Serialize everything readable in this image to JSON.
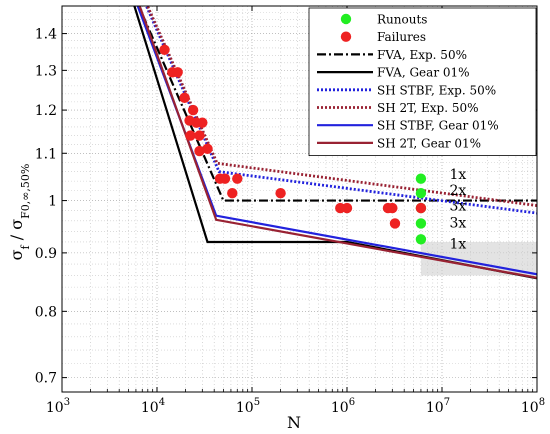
{
  "chart_data": {
    "type": "line",
    "xscale": "log",
    "yscale": "log",
    "xlim": [
      1000,
      100000000
    ],
    "ylim": [
      0.68,
      1.48
    ],
    "grid": true,
    "xlabel": "N",
    "ylabel_main": "σ",
    "ylabel_sub1": "f",
    "ylabel_mid": " / σ",
    "ylabel_sub2": "F0,∞,50%",
    "x_ticks": [
      {
        "value": 1000,
        "base": "10",
        "exp": "3"
      },
      {
        "value": 10000,
        "base": "10",
        "exp": "4"
      },
      {
        "value": 100000,
        "base": "10",
        "exp": "5"
      },
      {
        "value": 1000000,
        "base": "10",
        "exp": "6"
      },
      {
        "value": 10000000,
        "base": "10",
        "exp": "7"
      },
      {
        "value": 100000000,
        "base": "10",
        "exp": "8"
      }
    ],
    "y_ticks": [
      {
        "value": 0.7,
        "label": "0.7"
      },
      {
        "value": 0.8,
        "label": "0.8"
      },
      {
        "value": 0.9,
        "label": "0.9"
      },
      {
        "value": 1.0,
        "label": "1"
      },
      {
        "value": 1.1,
        "label": "1.1"
      },
      {
        "value": 1.2,
        "label": "1.2"
      },
      {
        "value": 1.3,
        "label": "1.3"
      },
      {
        "value": 1.4,
        "label": "1.4"
      }
    ],
    "legend_position": "top-right",
    "series": [
      {
        "name": "Runouts",
        "kind": "scatter",
        "color": "#22ee22",
        "x": [
          6000000,
          6000000,
          6000000,
          6000000,
          6000000
        ],
        "y": [
          1.045,
          1.015,
          0.985,
          0.955,
          0.925
        ]
      },
      {
        "name": "Failures",
        "kind": "scatter",
        "color": "#ee2222",
        "x": [
          12000,
          14500,
          16500,
          19500,
          22000,
          24000,
          22500,
          26000,
          28000,
          30000,
          34000,
          28000,
          46000,
          52000,
          62000,
          70000,
          200000,
          850000,
          1000000,
          2700000,
          3000000,
          3200000,
          6000000
        ],
        "y": [
          1.355,
          1.295,
          1.295,
          1.23,
          1.175,
          1.2,
          1.14,
          1.17,
          1.14,
          1.17,
          1.11,
          1.105,
          1.045,
          1.045,
          1.015,
          1.045,
          1.015,
          0.985,
          0.985,
          0.985,
          0.985,
          0.955,
          0.985
        ]
      },
      {
        "name": "FVA, Exp. 50%",
        "kind": "line",
        "color": "#000000",
        "dash": "9,3,2,3",
        "width": 2.2,
        "x": [
          6000,
          50000,
          100000000
        ],
        "y": [
          1.5,
          1.0,
          1.0
        ]
      },
      {
        "name": "FVA, Gear 01%",
        "kind": "line",
        "color": "#000000",
        "dash": "",
        "width": 2.2,
        "x": [
          5500,
          34000,
          1000000,
          100000000
        ],
        "y": [
          1.5,
          0.92,
          0.92,
          0.855
        ]
      },
      {
        "name": "SH STBF, Exp. 50%",
        "kind": "line",
        "color": "#2222dd",
        "dash": "2,2",
        "width": 2.8,
        "x": [
          7200,
          45000,
          100000000
        ],
        "y": [
          1.5,
          1.06,
          0.975
        ]
      },
      {
        "name": "SH 2T, Exp. 50%",
        "kind": "line",
        "color": "#992233",
        "dash": "2,2",
        "width": 2.8,
        "x": [
          7400,
          43000,
          100000000
        ],
        "y": [
          1.5,
          1.078,
          0.99
        ]
      },
      {
        "name": "SH STBF, Gear 01%",
        "kind": "line",
        "color": "#2222dd",
        "dash": "",
        "width": 2.2,
        "x": [
          5900,
          42000,
          100000000
        ],
        "y": [
          1.5,
          0.97,
          0.862
        ]
      },
      {
        "name": "SH 2T, Gear 01%",
        "kind": "line",
        "color": "#992233",
        "dash": "",
        "width": 2.2,
        "x": [
          6200,
          42000,
          100000000
        ],
        "y": [
          1.5,
          0.962,
          0.856
        ]
      }
    ],
    "annotations": [
      {
        "text": "1x",
        "x": 12000000,
        "y": 1.055
      },
      {
        "text": "2x",
        "x": 12000000,
        "y": 1.022
      },
      {
        "text": "3x",
        "x": 12000000,
        "y": 0.99
      },
      {
        "text": "3x",
        "x": 12000000,
        "y": 0.957
      },
      {
        "text": "1x",
        "x": 12000000,
        "y": 0.917
      }
    ],
    "shade_band": {
      "x_from": 6000000,
      "x_to": 100000000,
      "y_from": 0.86,
      "y_to": 0.92
    }
  }
}
